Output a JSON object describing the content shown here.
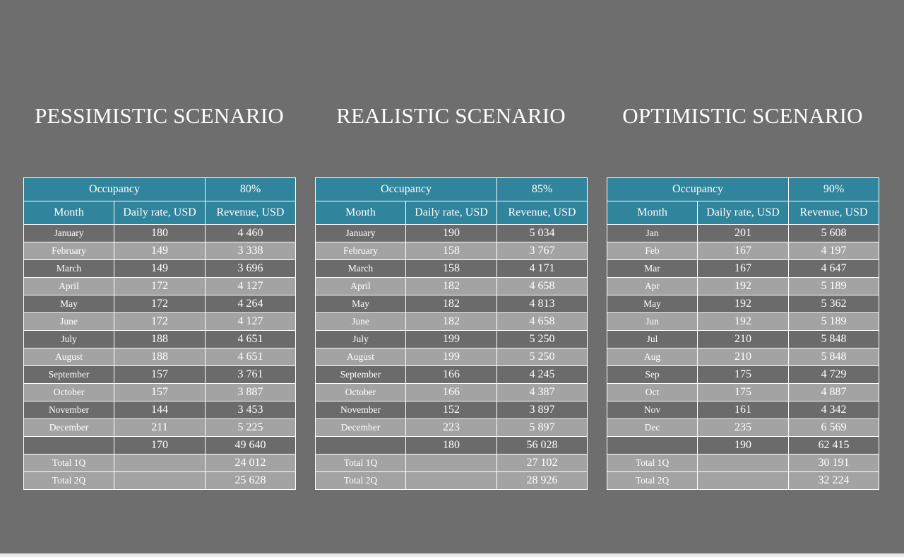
{
  "scenarios": [
    {
      "title": "PESSIMISTIC SCENARIO",
      "occupancy_label": "Occupancy",
      "occupancy_value": "80%",
      "columns": [
        "Month",
        "Daily rate, USD",
        "Revenue, USD"
      ],
      "rows": [
        {
          "month": "January",
          "rate": "180",
          "revenue": "4 460"
        },
        {
          "month": "February",
          "rate": "149",
          "revenue": "3 338"
        },
        {
          "month": "March",
          "rate": "149",
          "revenue": "3 696"
        },
        {
          "month": "April",
          "rate": "172",
          "revenue": "4 127"
        },
        {
          "month": "May",
          "rate": "172",
          "revenue": "4 264"
        },
        {
          "month": "June",
          "rate": "172",
          "revenue": "4 127"
        },
        {
          "month": "July",
          "rate": "188",
          "revenue": "4 651"
        },
        {
          "month": "August",
          "rate": "188",
          "revenue": "4 651"
        },
        {
          "month": "September",
          "rate": "157",
          "revenue": "3 761"
        },
        {
          "month": "October",
          "rate": "157",
          "revenue": "3 887"
        },
        {
          "month": "November",
          "rate": "144",
          "revenue": "3 453"
        },
        {
          "month": "December",
          "rate": "211",
          "revenue": "5 225"
        }
      ],
      "total": {
        "label": "",
        "rate": "170",
        "revenue": "49 640"
      },
      "q1": {
        "label": "Total 1Q",
        "rate": "",
        "revenue": "24 012"
      },
      "q2": {
        "label": "Total 2Q",
        "rate": "",
        "revenue": "25 628"
      }
    },
    {
      "title": "REALISTIC SCENARIO",
      "occupancy_label": "Occupancy",
      "occupancy_value": "85%",
      "columns": [
        "Month",
        "Daily rate, USD",
        "Revenue, USD"
      ],
      "rows": [
        {
          "month": "January",
          "rate": "190",
          "revenue": "5 034"
        },
        {
          "month": "February",
          "rate": "158",
          "revenue": "3 767"
        },
        {
          "month": "March",
          "rate": "158",
          "revenue": "4 171"
        },
        {
          "month": "April",
          "rate": "182",
          "revenue": "4 658"
        },
        {
          "month": "May",
          "rate": "182",
          "revenue": "4 813"
        },
        {
          "month": "June",
          "rate": "182",
          "revenue": "4 658"
        },
        {
          "month": "July",
          "rate": "199",
          "revenue": "5 250"
        },
        {
          "month": "August",
          "rate": "199",
          "revenue": "5 250"
        },
        {
          "month": "September",
          "rate": "166",
          "revenue": "4 245"
        },
        {
          "month": "October",
          "rate": "166",
          "revenue": "4 387"
        },
        {
          "month": "November",
          "rate": "152",
          "revenue": "3 897"
        },
        {
          "month": "December",
          "rate": "223",
          "revenue": "5 897"
        }
      ],
      "total": {
        "label": "",
        "rate": "180",
        "revenue": "56 028"
      },
      "q1": {
        "label": "Total 1Q",
        "rate": "",
        "revenue": "27 102"
      },
      "q2": {
        "label": "Total 2Q",
        "rate": "",
        "revenue": "28 926"
      }
    },
    {
      "title": "OPTIMISTIC SCENARIO",
      "occupancy_label": "Occupancy",
      "occupancy_value": "90%",
      "columns": [
        "Month",
        "Daily rate, USD",
        "Revenue, USD"
      ],
      "rows": [
        {
          "month": "Jan",
          "rate": "201",
          "revenue": "5 608"
        },
        {
          "month": "Feb",
          "rate": "167",
          "revenue": "4 197"
        },
        {
          "month": "Mar",
          "rate": "167",
          "revenue": "4 647"
        },
        {
          "month": "Apr",
          "rate": "192",
          "revenue": "5 189"
        },
        {
          "month": "May",
          "rate": "192",
          "revenue": "5 362"
        },
        {
          "month": "Jun",
          "rate": "192",
          "revenue": "5 189"
        },
        {
          "month": "Jul",
          "rate": "210",
          "revenue": "5 848"
        },
        {
          "month": "Aug",
          "rate": "210",
          "revenue": "5 848"
        },
        {
          "month": "Sep",
          "rate": "175",
          "revenue": "4 729"
        },
        {
          "month": "Oct",
          "rate": "175",
          "revenue": "4 887"
        },
        {
          "month": "Nov",
          "rate": "161",
          "revenue": "4 342"
        },
        {
          "month": "Dec",
          "rate": "235",
          "revenue": "6 569"
        }
      ],
      "total": {
        "label": "",
        "rate": "190",
        "revenue": "62 415"
      },
      "q1": {
        "label": "Total 1Q",
        "rate": "",
        "revenue": "30 191"
      },
      "q2": {
        "label": "Total 2Q",
        "rate": "",
        "revenue": "32 224"
      }
    }
  ],
  "colors": {
    "background": "#6e6e6e",
    "header": "#30849c",
    "row_dark": "#6b6b6b",
    "row_light": "#a3a3a3",
    "text": "#ffffff"
  }
}
